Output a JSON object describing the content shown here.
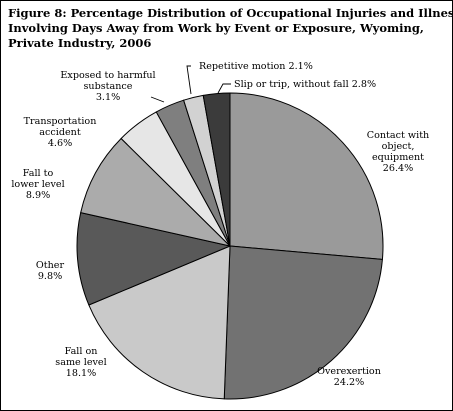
{
  "title_lines": [
    "Figure 8: Percentage Distribution of Occupational Injuries and Illnesses",
    "Involving Days Away from Work by Event or Exposure, Wyoming,",
    "Private Industry, 2006"
  ],
  "chart_data": {
    "type": "pie",
    "title": "Figure 8: Percentage Distribution of Occupational Injuries and Illnesses Involving Days Away from Work by Event or Exposure, Wyoming, Private Industry, 2006",
    "slices": [
      {
        "label": "Contact with object, equipment",
        "label_lines": [
          "Contact with",
          "object,",
          "equipment",
          "26.4%"
        ],
        "value": 26.4,
        "color": "#9a9a9a"
      },
      {
        "label": "Overexertion",
        "label_lines": [
          "Overexertion",
          "24.2%"
        ],
        "value": 24.2,
        "color": "#727272"
      },
      {
        "label": "Fall on same level",
        "label_lines": [
          "Fall on",
          "same level",
          "18.1%"
        ],
        "value": 18.1,
        "color": "#c9c9c9"
      },
      {
        "label": "Other",
        "label_lines": [
          "Other",
          "9.8%"
        ],
        "value": 9.8,
        "color": "#595959"
      },
      {
        "label": "Fall to lower level",
        "label_lines": [
          "Fall to",
          "lower level",
          "8.9%"
        ],
        "value": 8.9,
        "color": "#ababab"
      },
      {
        "label": "Transportation accident",
        "label_lines": [
          "Transportation",
          "accident",
          "4.6%"
        ],
        "value": 4.6,
        "color": "#e6e6e6"
      },
      {
        "label": "Exposed to harmful substance",
        "label_lines": [
          "Exposed to harmful",
          "substance",
          "3.1%"
        ],
        "value": 3.1,
        "color": "#7f7f7f"
      },
      {
        "label": "Repetitive motion",
        "label_lines": [
          "Repetitive motion 2.1%"
        ],
        "value": 2.1,
        "color": "#d2d2d2"
      },
      {
        "label": "Slip or trip, without fall",
        "label_lines": [
          "Slip or trip, without fall 2.8%"
        ],
        "value": 2.8,
        "color": "#3b3b3b"
      }
    ]
  }
}
